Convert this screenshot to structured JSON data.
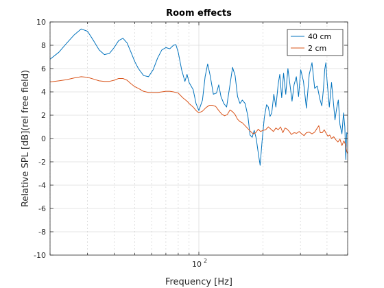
{
  "chart_data": {
    "type": "line",
    "title": "Room effects",
    "xlabel": "Frequency [Hz]",
    "ylabel": "Relative SPL  [dB](rel free field)",
    "xscale": "log",
    "xlim": [
      20,
      500
    ],
    "ylim": [
      -10,
      10
    ],
    "yticks": [
      -10,
      -8,
      -6,
      -4,
      -2,
      0,
      2,
      4,
      6,
      8,
      10
    ],
    "xtick_label": "10",
    "xtick_label_exp": "2",
    "xtick_value": 100,
    "grid": "on",
    "legend_position": "top-right",
    "series": [
      {
        "name": "40 cm",
        "color": "#0072BD",
        "points": [
          [
            20,
            6.8
          ],
          [
            22,
            7.4
          ],
          [
            24,
            8.2
          ],
          [
            26,
            8.9
          ],
          [
            28,
            9.4
          ],
          [
            30,
            9.2
          ],
          [
            32,
            8.4
          ],
          [
            34,
            7.6
          ],
          [
            36,
            7.2
          ],
          [
            38,
            7.3
          ],
          [
            40,
            7.8
          ],
          [
            42,
            8.4
          ],
          [
            44,
            8.6
          ],
          [
            46,
            8.2
          ],
          [
            48,
            7.4
          ],
          [
            50,
            6.6
          ],
          [
            52,
            6.0
          ],
          [
            55,
            5.4
          ],
          [
            58,
            5.3
          ],
          [
            61,
            5.9
          ],
          [
            64,
            6.9
          ],
          [
            67,
            7.6
          ],
          [
            70,
            7.8
          ],
          [
            73,
            7.7
          ],
          [
            76,
            8.0
          ],
          [
            78,
            8.05
          ],
          [
            80,
            7.4
          ],
          [
            83,
            5.9
          ],
          [
            86,
            4.9
          ],
          [
            88,
            5.5
          ],
          [
            90,
            4.8
          ],
          [
            94,
            4.2
          ],
          [
            97,
            3.0
          ],
          [
            100,
            2.4
          ],
          [
            104,
            3.3
          ],
          [
            107,
            5.3
          ],
          [
            110,
            6.4
          ],
          [
            113,
            5.4
          ],
          [
            117,
            3.8
          ],
          [
            121,
            3.9
          ],
          [
            124,
            4.6
          ],
          [
            127,
            3.6
          ],
          [
            131,
            3.0
          ],
          [
            135,
            2.7
          ],
          [
            140,
            4.6
          ],
          [
            144,
            6.1
          ],
          [
            148,
            5.4
          ],
          [
            152,
            3.6
          ],
          [
            156,
            3.0
          ],
          [
            160,
            3.3
          ],
          [
            165,
            3.0
          ],
          [
            170,
            1.9
          ],
          [
            174,
            0.3
          ],
          [
            178,
            0.1
          ],
          [
            182,
            0.7
          ],
          [
            186,
            0.0
          ],
          [
            190,
            -1.2
          ],
          [
            194,
            -2.3
          ],
          [
            198,
            -0.3
          ],
          [
            203,
            1.8
          ],
          [
            208,
            2.9
          ],
          [
            212,
            2.7
          ],
          [
            216,
            1.9
          ],
          [
            220,
            2.2
          ],
          [
            225,
            3.8
          ],
          [
            230,
            2.7
          ],
          [
            236,
            4.7
          ],
          [
            240,
            5.5
          ],
          [
            245,
            3.5
          ],
          [
            250,
            5.6
          ],
          [
            256,
            3.8
          ],
          [
            262,
            6.0
          ],
          [
            268,
            4.6
          ],
          [
            274,
            3.2
          ],
          [
            280,
            4.6
          ],
          [
            287,
            5.3
          ],
          [
            294,
            3.6
          ],
          [
            301,
            5.9
          ],
          [
            310,
            4.9
          ],
          [
            320,
            2.6
          ],
          [
            330,
            5.5
          ],
          [
            340,
            6.5
          ],
          [
            350,
            4.3
          ],
          [
            360,
            4.5
          ],
          [
            370,
            3.4
          ],
          [
            378,
            2.8
          ],
          [
            385,
            4.3
          ],
          [
            390,
            5.9
          ],
          [
            395,
            6.5
          ],
          [
            400,
            5.0
          ],
          [
            410,
            2.7
          ],
          [
            420,
            4.8
          ],
          [
            428,
            3.2
          ],
          [
            436,
            1.6
          ],
          [
            444,
            2.6
          ],
          [
            452,
            3.3
          ],
          [
            460,
            1.2
          ],
          [
            470,
            0.4
          ],
          [
            478,
            2.2
          ],
          [
            485,
            1.0
          ],
          [
            490,
            -1.8
          ],
          [
            495,
            0.5
          ],
          [
            500,
            0.4
          ]
        ]
      },
      {
        "name": "2 cm",
        "color": "#D95319",
        "points": [
          [
            20,
            4.85
          ],
          [
            22,
            4.95
          ],
          [
            24,
            5.05
          ],
          [
            26,
            5.2
          ],
          [
            28,
            5.3
          ],
          [
            30,
            5.25
          ],
          [
            32,
            5.1
          ],
          [
            34,
            4.95
          ],
          [
            36,
            4.9
          ],
          [
            38,
            4.9
          ],
          [
            40,
            5.0
          ],
          [
            42,
            5.15
          ],
          [
            44,
            5.15
          ],
          [
            46,
            5.0
          ],
          [
            48,
            4.7
          ],
          [
            50,
            4.45
          ],
          [
            52,
            4.3
          ],
          [
            55,
            4.05
          ],
          [
            58,
            3.95
          ],
          [
            61,
            3.95
          ],
          [
            64,
            3.95
          ],
          [
            67,
            4.0
          ],
          [
            70,
            4.05
          ],
          [
            73,
            4.05
          ],
          [
            76,
            4.0
          ],
          [
            80,
            3.9
          ],
          [
            84,
            3.5
          ],
          [
            88,
            3.2
          ],
          [
            90,
            3.0
          ],
          [
            94,
            2.7
          ],
          [
            97,
            2.4
          ],
          [
            100,
            2.2
          ],
          [
            104,
            2.35
          ],
          [
            108,
            2.65
          ],
          [
            112,
            2.85
          ],
          [
            116,
            2.85
          ],
          [
            120,
            2.75
          ],
          [
            124,
            2.4
          ],
          [
            128,
            2.1
          ],
          [
            132,
            1.95
          ],
          [
            136,
            2.05
          ],
          [
            140,
            2.45
          ],
          [
            144,
            2.3
          ],
          [
            148,
            2.05
          ],
          [
            152,
            1.65
          ],
          [
            156,
            1.45
          ],
          [
            160,
            1.35
          ],
          [
            165,
            1.1
          ],
          [
            170,
            0.85
          ],
          [
            175,
            0.6
          ],
          [
            180,
            0.4
          ],
          [
            185,
            0.5
          ],
          [
            190,
            0.8
          ],
          [
            195,
            0.6
          ],
          [
            200,
            0.7
          ],
          [
            206,
            0.75
          ],
          [
            212,
            1.0
          ],
          [
            218,
            0.8
          ],
          [
            224,
            0.6
          ],
          [
            230,
            0.9
          ],
          [
            236,
            0.75
          ],
          [
            242,
            1.0
          ],
          [
            248,
            0.5
          ],
          [
            254,
            0.9
          ],
          [
            260,
            0.8
          ],
          [
            266,
            0.6
          ],
          [
            272,
            0.35
          ],
          [
            280,
            0.5
          ],
          [
            288,
            0.45
          ],
          [
            296,
            0.6
          ],
          [
            304,
            0.4
          ],
          [
            312,
            0.25
          ],
          [
            320,
            0.5
          ],
          [
            330,
            0.55
          ],
          [
            340,
            0.4
          ],
          [
            350,
            0.55
          ],
          [
            360,
            0.9
          ],
          [
            366,
            1.1
          ],
          [
            372,
            0.5
          ],
          [
            380,
            0.5
          ],
          [
            388,
            0.75
          ],
          [
            396,
            0.45
          ],
          [
            404,
            0.2
          ],
          [
            412,
            0.3
          ],
          [
            420,
            0.0
          ],
          [
            430,
            0.15
          ],
          [
            440,
            -0.1
          ],
          [
            450,
            -0.3
          ],
          [
            460,
            -0.05
          ],
          [
            470,
            -0.6
          ],
          [
            480,
            -0.2
          ],
          [
            488,
            -0.5
          ],
          [
            495,
            -1.1
          ],
          [
            500,
            -1.3
          ]
        ]
      }
    ]
  }
}
